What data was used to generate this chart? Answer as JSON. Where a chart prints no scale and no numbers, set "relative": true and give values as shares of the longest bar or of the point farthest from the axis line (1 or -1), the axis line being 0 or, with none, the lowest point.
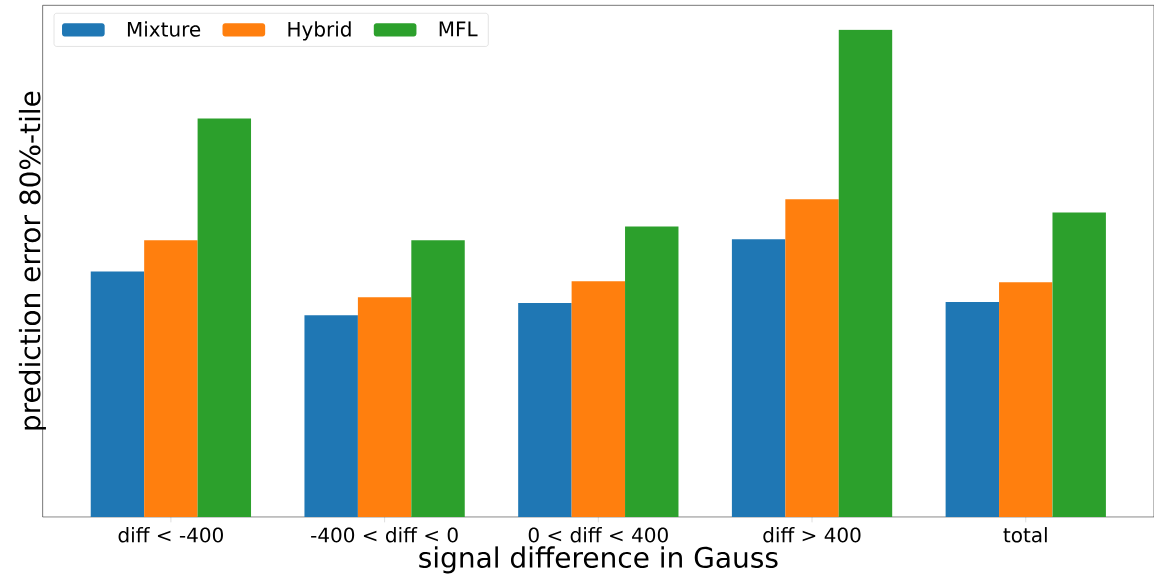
{
  "chart_data": {
    "type": "bar",
    "relative": true,
    "xlabel": "signal difference in Gauss",
    "ylabel": "prediction error 80%-tile",
    "categories": [
      "diff < -400",
      "-400 < diff < 0",
      "0 < diff < 400",
      "diff > 400",
      "total"
    ],
    "series": [
      {
        "name": "Mixture",
        "color": "#1f77b4",
        "values": [
          0.504,
          0.414,
          0.439,
          0.57,
          0.441
        ]
      },
      {
        "name": "Hybrid",
        "color": "#ff7f0e",
        "values": [
          0.568,
          0.451,
          0.484,
          0.652,
          0.482
        ]
      },
      {
        "name": "MFL",
        "color": "#2ca02c",
        "values": [
          0.818,
          0.568,
          0.596,
          1,
          0.625
        ]
      }
    ],
    "legend": "top left"
  }
}
